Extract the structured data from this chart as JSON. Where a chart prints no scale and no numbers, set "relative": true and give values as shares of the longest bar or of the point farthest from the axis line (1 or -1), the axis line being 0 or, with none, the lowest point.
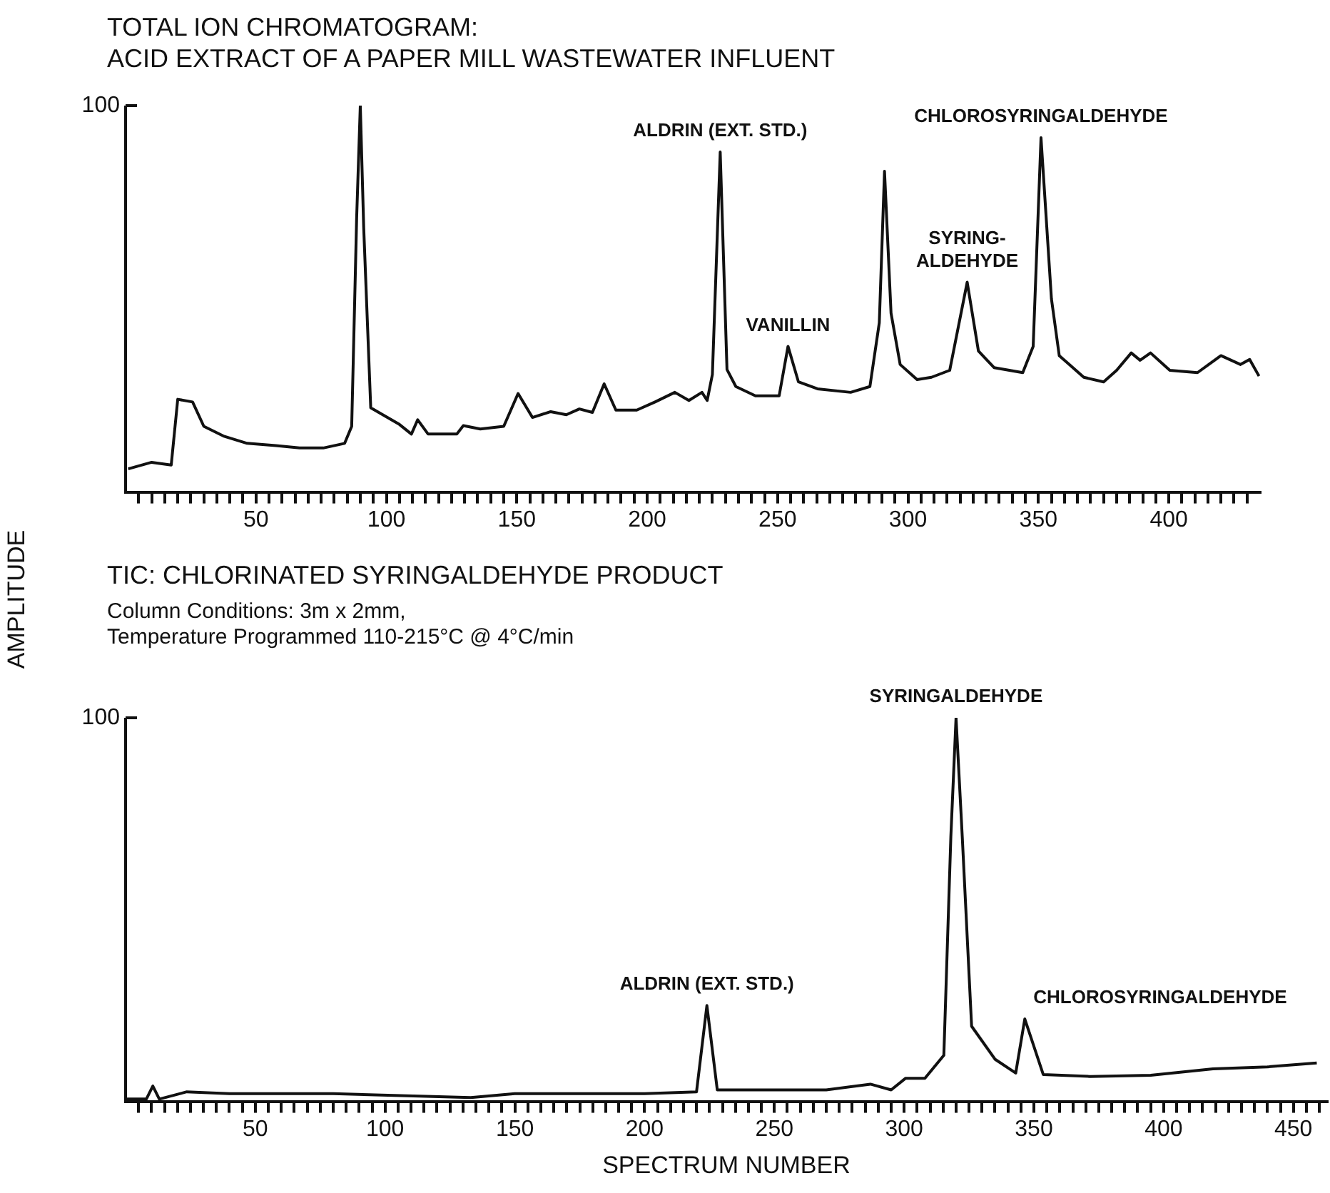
{
  "chart_data": [
    {
      "type": "line",
      "title": "TOTAL ION CHROMATOGRAM:\nACID EXTRACT OF A PAPER MILL WASTEWATER INFLUENT",
      "ylabel": "AMPLITUDE",
      "relative": true,
      "marker": "none",
      "grid": false,
      "legend": false,
      "xlim": [
        0,
        435
      ],
      "xticks": [
        {
          "value": 5,
          "label": null
        },
        {
          "value": 10,
          "label": null
        },
        {
          "value": 15,
          "label": null
        },
        {
          "value": 20,
          "label": null
        },
        {
          "value": 25,
          "label": null
        },
        {
          "value": 30,
          "label": null
        },
        {
          "value": 35,
          "label": null
        },
        {
          "value": 40,
          "label": null
        },
        {
          "value": 45,
          "label": null
        },
        50,
        {
          "value": 55,
          "label": null
        },
        {
          "value": 60,
          "label": null
        },
        {
          "value": 65,
          "label": null
        },
        {
          "value": 70,
          "label": null
        },
        {
          "value": 75,
          "label": null
        },
        {
          "value": 80,
          "label": null
        },
        {
          "value": 85,
          "label": null
        },
        {
          "value": 90,
          "label": null
        },
        {
          "value": 95,
          "label": null
        },
        100,
        {
          "value": 105,
          "label": null
        },
        {
          "value": 110,
          "label": null
        },
        {
          "value": 115,
          "label": null
        },
        {
          "value": 120,
          "label": null
        },
        {
          "value": 125,
          "label": null
        },
        {
          "value": 130,
          "label": null
        },
        {
          "value": 135,
          "label": null
        },
        {
          "value": 140,
          "label": null
        },
        {
          "value": 145,
          "label": null
        },
        150,
        {
          "value": 155,
          "label": null
        },
        {
          "value": 160,
          "label": null
        },
        {
          "value": 165,
          "label": null
        },
        {
          "value": 170,
          "label": null
        },
        {
          "value": 175,
          "label": null
        },
        {
          "value": 180,
          "label": null
        },
        {
          "value": 185,
          "label": null
        },
        {
          "value": 190,
          "label": null
        },
        {
          "value": 195,
          "label": null
        },
        200,
        {
          "value": 205,
          "label": null
        },
        {
          "value": 210,
          "label": null
        },
        {
          "value": 215,
          "label": null
        },
        {
          "value": 220,
          "label": null
        },
        {
          "value": 225,
          "label": null
        },
        {
          "value": 230,
          "label": null
        },
        {
          "value": 235,
          "label": null
        },
        {
          "value": 240,
          "label": null
        },
        {
          "value": 245,
          "label": null
        },
        250,
        {
          "value": 255,
          "label": null
        },
        {
          "value": 260,
          "label": null
        },
        {
          "value": 265,
          "label": null
        },
        {
          "value": 270,
          "label": null
        },
        {
          "value": 275,
          "label": null
        },
        {
          "value": 280,
          "label": null
        },
        {
          "value": 285,
          "label": null
        },
        {
          "value": 290,
          "label": null
        },
        {
          "value": 295,
          "label": null
        },
        300,
        {
          "value": 305,
          "label": null
        },
        {
          "value": 310,
          "label": null
        },
        {
          "value": 315,
          "label": null
        },
        {
          "value": 320,
          "label": null
        },
        {
          "value": 325,
          "label": null
        },
        {
          "value": 330,
          "label": null
        },
        {
          "value": 335,
          "label": null
        },
        {
          "value": 340,
          "label": null
        },
        {
          "value": 345,
          "label": null
        },
        350,
        {
          "value": 355,
          "label": null
        },
        {
          "value": 360,
          "label": null
        },
        {
          "value": 365,
          "label": null
        },
        {
          "value": 370,
          "label": null
        },
        {
          "value": 375,
          "label": null
        },
        {
          "value": 380,
          "label": null
        },
        {
          "value": 385,
          "label": null
        },
        {
          "value": 390,
          "label": null
        },
        {
          "value": 395,
          "label": null
        },
        400,
        {
          "value": 405,
          "label": null
        },
        {
          "value": 410,
          "label": null
        },
        {
          "value": 415,
          "label": null
        },
        {
          "value": 420,
          "label": null
        },
        {
          "value": 425,
          "label": null
        },
        {
          "value": 430,
          "label": null
        }
      ],
      "series": [
        {
          "color": "#111111",
          "x": [
            1,
            10,
            17.5,
            20,
            25.7,
            30,
            37.5,
            46.6,
            57.6,
            66.7,
            75.8,
            84,
            86.7,
            88.6,
            90,
            91.3,
            94,
            98.6,
            105,
            109.6,
            112,
            116,
            127,
            129.5,
            136,
            145,
            150.5,
            156,
            163,
            169,
            174,
            179,
            183.5,
            188,
            196,
            203,
            210.6,
            216,
            221,
            223,
            225,
            228,
            230.6,
            234,
            241.5,
            250.6,
            254,
            258,
            265.3,
            278,
            285.4,
            289,
            291,
            293.5,
            297,
            303.5,
            309,
            316,
            322.7,
            327,
            333,
            344,
            348,
            351,
            355,
            358,
            367.4,
            375,
            380,
            385.6,
            389,
            393,
            400.4,
            411,
            420,
            427.5,
            431,
            434.6
          ],
          "values": [
            0.06,
            0.077,
            0.07,
            0.24,
            0.233,
            0.17,
            0.145,
            0.126,
            0.12,
            0.114,
            0.114,
            0.126,
            0.17,
            0.709,
            1,
            0.685,
            0.218,
            0.2,
            0.175,
            0.15,
            0.187,
            0.15,
            0.15,
            0.172,
            0.163,
            0.17,
            0.255,
            0.193,
            0.208,
            0.2,
            0.215,
            0.206,
            0.28,
            0.212,
            0.212,
            0.233,
            0.258,
            0.237,
            0.258,
            0.237,
            0.304,
            0.88,
            0.317,
            0.273,
            0.249,
            0.249,
            0.377,
            0.285,
            0.267,
            0.258,
            0.273,
            0.438,
            0.83,
            0.463,
            0.33,
            0.291,
            0.297,
            0.315,
            0.543,
            0.365,
            0.322,
            0.309,
            0.377,
            0.917,
            0.5,
            0.353,
            0.297,
            0.285,
            0.315,
            0.36,
            0.341,
            0.36,
            0.315,
            0.309,
            0.353,
            0.33,
            0.343,
            0.3
          ]
        }
      ],
      "annotations": [
        "100",
        {
          "text": "ALDRIN (EXT. STD.)",
          "x": 228,
          "y": 0.88
        },
        {
          "text": "VANILLIN",
          "x": 254,
          "y": 0.377
        },
        {
          "text": "SYRING-\nALDEHYDE",
          "x": 322.7,
          "y": 0.543
        },
        {
          "text": "CHLOROSYRINGALDEHYDE",
          "x": 351,
          "y": 0.917
        }
      ]
    },
    {
      "type": "line",
      "title": "TIC: CHLORINATED SYRINGALDEHYDE PRODUCT",
      "subtitle": "Column Conditions: 3m x 2mm,\nTemperature Programmed 110-215°C @ 4°C/min",
      "xlabel": "SPECTRUM NUMBER",
      "relative": true,
      "marker": "none",
      "grid": false,
      "legend": false,
      "xlim": [
        0,
        463
      ],
      "xticks": [
        {
          "value": 5,
          "label": null
        },
        {
          "value": 10,
          "label": null
        },
        {
          "value": 15,
          "label": null
        },
        {
          "value": 20,
          "label": null
        },
        {
          "value": 25,
          "label": null
        },
        {
          "value": 30,
          "label": null
        },
        {
          "value": 35,
          "label": null
        },
        {
          "value": 40,
          "label": null
        },
        {
          "value": 45,
          "label": null
        },
        50,
        {
          "value": 55,
          "label": null
        },
        {
          "value": 60,
          "label": null
        },
        {
          "value": 65,
          "label": null
        },
        {
          "value": 70,
          "label": null
        },
        {
          "value": 75,
          "label": null
        },
        {
          "value": 80,
          "label": null
        },
        {
          "value": 85,
          "label": null
        },
        {
          "value": 90,
          "label": null
        },
        {
          "value": 95,
          "label": null
        },
        100,
        {
          "value": 105,
          "label": null
        },
        {
          "value": 110,
          "label": null
        },
        {
          "value": 115,
          "label": null
        },
        {
          "value": 120,
          "label": null
        },
        {
          "value": 125,
          "label": null
        },
        {
          "value": 130,
          "label": null
        },
        {
          "value": 135,
          "label": null
        },
        {
          "value": 140,
          "label": null
        },
        {
          "value": 145,
          "label": null
        },
        150,
        {
          "value": 155,
          "label": null
        },
        {
          "value": 160,
          "label": null
        },
        {
          "value": 165,
          "label": null
        },
        {
          "value": 170,
          "label": null
        },
        {
          "value": 175,
          "label": null
        },
        {
          "value": 180,
          "label": null
        },
        {
          "value": 185,
          "label": null
        },
        {
          "value": 190,
          "label": null
        },
        {
          "value": 195,
          "label": null
        },
        200,
        {
          "value": 205,
          "label": null
        },
        {
          "value": 210,
          "label": null
        },
        {
          "value": 215,
          "label": null
        },
        {
          "value": 220,
          "label": null
        },
        {
          "value": 225,
          "label": null
        },
        {
          "value": 230,
          "label": null
        },
        {
          "value": 235,
          "label": null
        },
        {
          "value": 240,
          "label": null
        },
        {
          "value": 245,
          "label": null
        },
        250,
        {
          "value": 255,
          "label": null
        },
        {
          "value": 260,
          "label": null
        },
        {
          "value": 265,
          "label": null
        },
        {
          "value": 270,
          "label": null
        },
        {
          "value": 275,
          "label": null
        },
        {
          "value": 280,
          "label": null
        },
        {
          "value": 285,
          "label": null
        },
        {
          "value": 290,
          "label": null
        },
        {
          "value": 295,
          "label": null
        },
        300,
        {
          "value": 305,
          "label": null
        },
        {
          "value": 310,
          "label": null
        },
        {
          "value": 315,
          "label": null
        },
        {
          "value": 320,
          "label": null
        },
        {
          "value": 325,
          "label": null
        },
        {
          "value": 330,
          "label": null
        },
        {
          "value": 335,
          "label": null
        },
        {
          "value": 340,
          "label": null
        },
        {
          "value": 345,
          "label": null
        },
        350,
        {
          "value": 355,
          "label": null
        },
        {
          "value": 360,
          "label": null
        },
        {
          "value": 365,
          "label": null
        },
        {
          "value": 370,
          "label": null
        },
        {
          "value": 375,
          "label": null
        },
        {
          "value": 380,
          "label": null
        },
        {
          "value": 385,
          "label": null
        },
        {
          "value": 390,
          "label": null
        },
        {
          "value": 395,
          "label": null
        },
        400,
        {
          "value": 405,
          "label": null
        },
        {
          "value": 410,
          "label": null
        },
        {
          "value": 415,
          "label": null
        },
        {
          "value": 420,
          "label": null
        },
        {
          "value": 425,
          "label": null
        },
        {
          "value": 430,
          "label": null
        },
        {
          "value": 435,
          "label": null
        },
        {
          "value": 440,
          "label": null
        },
        {
          "value": 445,
          "label": null
        },
        450,
        {
          "value": 455,
          "label": null
        },
        {
          "value": 460,
          "label": null
        }
      ],
      "series": [
        {
          "color": "#111111",
          "x": [
            0,
            8,
            10.5,
            13,
            23.6,
            40,
            80,
            133,
            150,
            200,
            220,
            224,
            228,
            240,
            270,
            287,
            295,
            300.5,
            308,
            315.3,
            318,
            320,
            322.4,
            326,
            335,
            343,
            346.5,
            353.6,
            371.6,
            395,
            419,
            440,
            459
          ],
          "values": [
            0.006,
            0.006,
            0.04,
            0.006,
            0.025,
            0.02,
            0.02,
            0.01,
            0.02,
            0.02,
            0.025,
            0.25,
            0.03,
            0.03,
            0.03,
            0.045,
            0.03,
            0.06,
            0.06,
            0.12,
            0.69,
            1,
            0.69,
            0.196,
            0.11,
            0.074,
            0.215,
            0.07,
            0.065,
            0.068,
            0.085,
            0.09,
            0.1
          ]
        }
      ],
      "annotations": [
        "100",
        {
          "text": "ALDRIN (EXT. STD.)",
          "x": 224,
          "y": 0.25
        },
        {
          "text": "SYRINGALDEHYDE",
          "x": 320,
          "y": 1
        },
        {
          "text": "CHLOROSYRINGALDEHYDE",
          "x": 346.5,
          "y": 0.215
        }
      ]
    }
  ]
}
